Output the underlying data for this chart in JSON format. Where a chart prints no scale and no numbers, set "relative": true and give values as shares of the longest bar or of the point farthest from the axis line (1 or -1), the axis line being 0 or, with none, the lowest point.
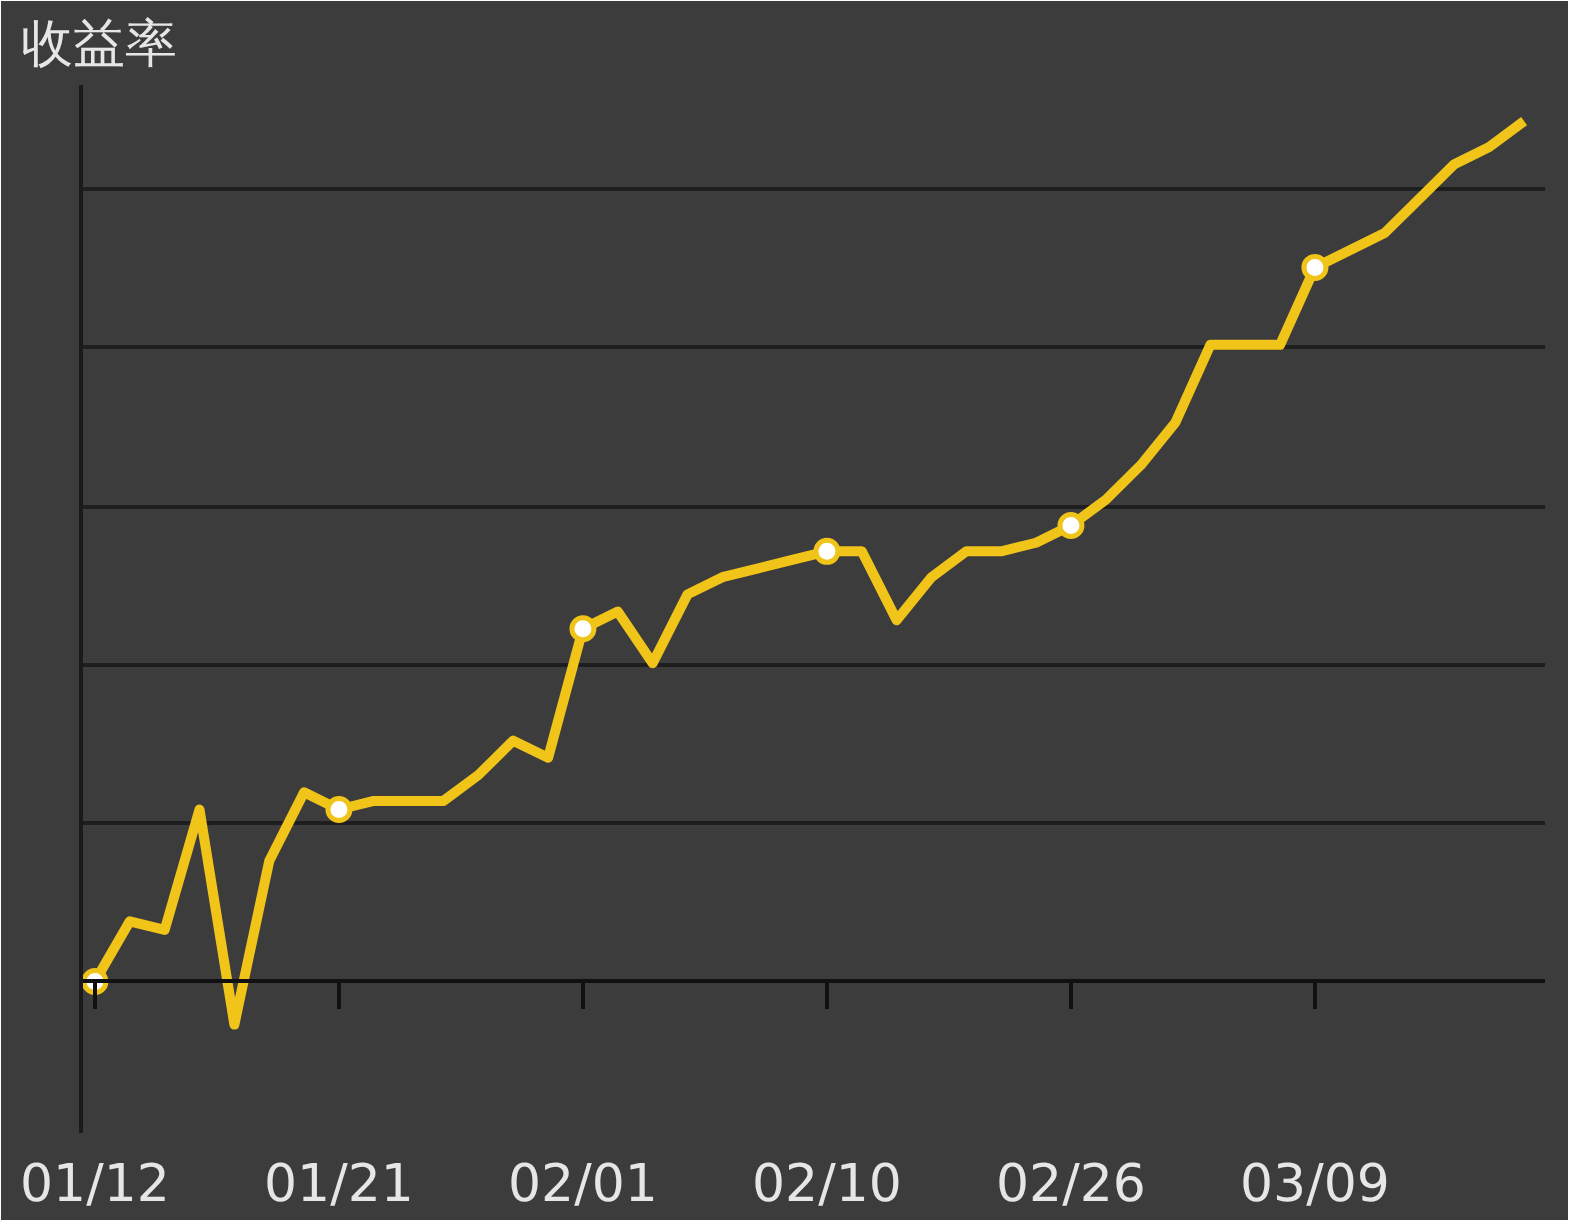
{
  "chart_data": {
    "type": "line",
    "title": "收益率",
    "relative": true,
    "grid": "y",
    "line_style": "solid",
    "categories": [
      "01/12",
      null,
      null,
      null,
      null,
      null,
      null,
      "01/21",
      null,
      null,
      null,
      null,
      null,
      null,
      "02/01",
      null,
      null,
      null,
      null,
      null,
      null,
      "02/10",
      null,
      null,
      null,
      null,
      null,
      null,
      "02/26",
      null,
      null,
      null,
      null,
      null,
      null,
      "03/09",
      null,
      null,
      null,
      null,
      null,
      null
    ],
    "series": [
      {
        "color": "#f0c419",
        "values": [
          0,
          0.07,
          0.06,
          0.2,
          -0.05,
          0.14,
          0.22,
          0.2,
          0.21,
          0.21,
          0.21,
          0.24,
          0.28,
          0.26,
          0.41,
          0.43,
          0.37,
          0.45,
          0.47,
          0.48,
          0.49,
          0.5,
          0.5,
          0.42,
          0.47,
          0.5,
          0.5,
          0.51,
          0.53,
          0.56,
          0.6,
          0.65,
          0.74,
          0.74,
          0.74,
          0.83,
          0.85,
          0.87,
          0.91,
          0.95,
          0.97,
          1
        ]
      },
      {
        "type": "scatter",
        "marker": "circle",
        "color": "#f0c419",
        "x": [
          "01/12",
          "01/21",
          "02/01",
          "02/10",
          "02/26",
          "03/09"
        ],
        "values": [
          0,
          0.2,
          0.41,
          0.5,
          0.53,
          0.83
        ]
      }
    ]
  }
}
